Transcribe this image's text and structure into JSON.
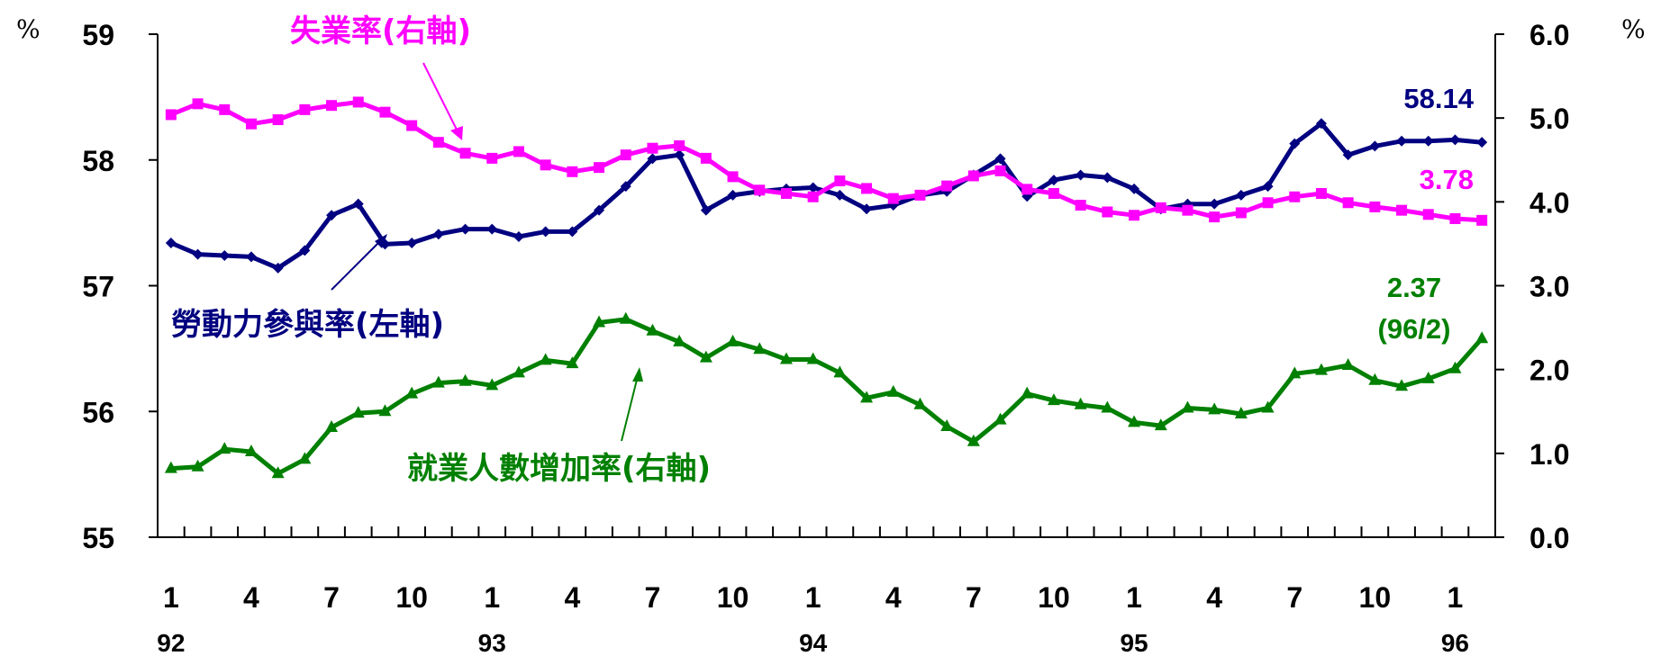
{
  "chart_data": {
    "type": "line",
    "x_month_labels": [
      "1",
      "4",
      "7",
      "10",
      "1",
      "4",
      "7",
      "10",
      "1",
      "4",
      "7",
      "10",
      "1",
      "4",
      "7",
      "10",
      "1"
    ],
    "x_year_labels": [
      "92",
      "93",
      "94",
      "95",
      "96"
    ],
    "left_axis": {
      "unit": "%",
      "ylim": [
        55,
        59
      ],
      "ticks": [
        "55",
        "56",
        "57",
        "58",
        "59"
      ]
    },
    "right_axis": {
      "unit": "%",
      "ylim": [
        0,
        6
      ],
      "ticks": [
        "0.0",
        "1.0",
        "2.0",
        "3.0",
        "4.0",
        "5.0",
        "6.0"
      ]
    },
    "series": [
      {
        "name": "勞動力參與率(左軸)",
        "axis": "left",
        "color": "#000080",
        "marker": "diamond",
        "values": [
          57.34,
          57.25,
          57.24,
          57.23,
          57.14,
          57.28,
          57.56,
          57.65,
          57.33,
          57.34,
          57.41,
          57.45,
          57.45,
          57.39,
          57.43,
          57.43,
          57.6,
          57.79,
          58.01,
          58.04,
          57.6,
          57.72,
          57.75,
          57.77,
          57.78,
          57.72,
          57.61,
          57.64,
          57.72,
          57.75,
          57.88,
          58.01,
          57.71,
          57.84,
          57.88,
          57.86,
          57.77,
          57.61,
          57.65,
          57.65,
          57.72,
          57.79,
          58.13,
          58.29,
          58.04,
          58.11,
          58.15,
          58.15,
          58.16,
          58.14
        ],
        "end_label": "58.14"
      },
      {
        "name": "失業率(右軸)",
        "axis": "right",
        "color": "#ff00ff",
        "marker": "square",
        "values": [
          5.04,
          5.17,
          5.1,
          4.93,
          4.98,
          5.1,
          5.15,
          5.19,
          5.07,
          4.91,
          4.71,
          4.58,
          4.52,
          4.6,
          4.44,
          4.36,
          4.41,
          4.56,
          4.64,
          4.67,
          4.52,
          4.3,
          4.14,
          4.1,
          4.06,
          4.25,
          4.16,
          4.04,
          4.08,
          4.19,
          4.31,
          4.37,
          4.15,
          4.1,
          3.96,
          3.88,
          3.84,
          3.93,
          3.9,
          3.82,
          3.87,
          3.99,
          4.06,
          4.1,
          3.99,
          3.94,
          3.9,
          3.85,
          3.8,
          3.78
        ],
        "end_label": "3.78"
      },
      {
        "name": "就業人數增加率(右軸)",
        "axis": "right",
        "color": "#008000",
        "marker": "triangle",
        "values": [
          0.82,
          0.84,
          1.05,
          1.02,
          0.76,
          0.93,
          1.31,
          1.48,
          1.5,
          1.71,
          1.84,
          1.86,
          1.81,
          1.96,
          2.11,
          2.07,
          2.56,
          2.6,
          2.46,
          2.33,
          2.14,
          2.33,
          2.24,
          2.12,
          2.12,
          1.96,
          1.66,
          1.73,
          1.58,
          1.32,
          1.14,
          1.4,
          1.71,
          1.63,
          1.58,
          1.54,
          1.37,
          1.33,
          1.54,
          1.52,
          1.47,
          1.54,
          1.95,
          1.99,
          2.05,
          1.87,
          1.8,
          1.89,
          2.01,
          2.37
        ],
        "end_label": "2.37",
        "end_sublabel": "(96/2)"
      }
    ]
  }
}
